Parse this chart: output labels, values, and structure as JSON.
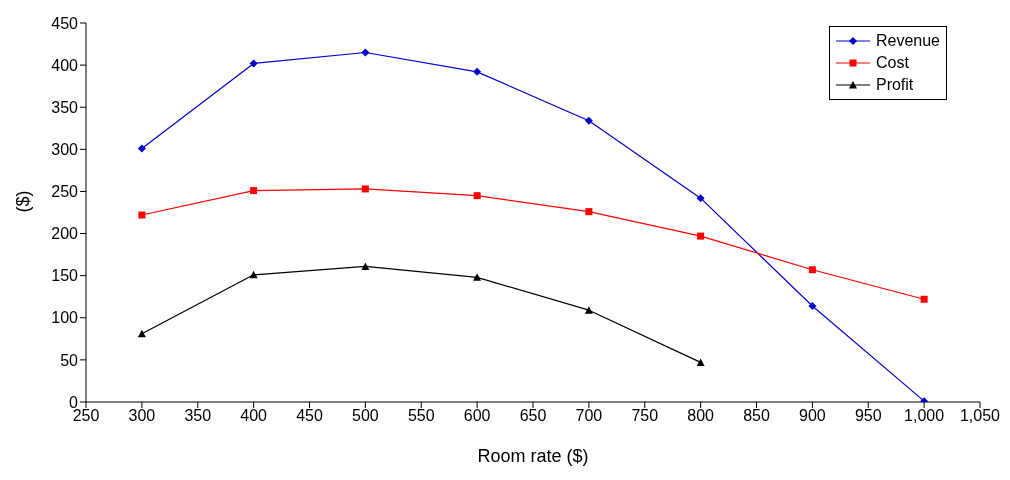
{
  "chart_data": {
    "type": "line",
    "xlabel": "Room rate ($)",
    "ylabel": "($)",
    "x": [
      300,
      400,
      500,
      600,
      700,
      800,
      900,
      1000
    ],
    "series": [
      {
        "name": "Revenue",
        "color": "#0000cc",
        "marker": "diamond",
        "values": [
          301,
          402,
          415,
          392,
          334,
          242,
          114,
          1
        ]
      },
      {
        "name": "Cost",
        "color": "#ff0000",
        "marker": "square",
        "values": [
          222,
          251,
          253,
          245,
          226,
          197,
          157,
          122
        ]
      },
      {
        "name": "Profit",
        "color": "#000000",
        "marker": "triangle",
        "values": [
          81,
          151,
          161,
          148,
          109,
          47,
          null,
          null
        ]
      }
    ],
    "xlim": [
      250,
      1050
    ],
    "xticks": [
      250,
      300,
      350,
      400,
      450,
      500,
      550,
      600,
      650,
      700,
      750,
      800,
      850,
      900,
      950,
      {
        "value": 1000,
        "label": "1,000"
      },
      {
        "value": 1050,
        "label": "1,050"
      }
    ],
    "ylim": [
      0,
      450
    ],
    "yticks": [
      0,
      50,
      100,
      150,
      200,
      250,
      300,
      350,
      400,
      450
    ],
    "grid": false,
    "legend": "top right"
  }
}
